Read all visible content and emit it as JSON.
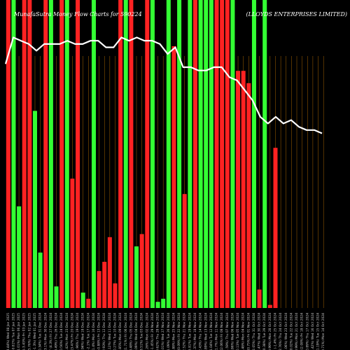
{
  "chart_data": {
    "type": "bar",
    "title": "MunafaSutra  Money Flow  Charts for 590224",
    "title_right": "(LLOYDS ENTERPRISES LIMITED)",
    "categories": [
      "Wed 08 Jan 2025",
      "Tue 07 Jan 2025",
      "Mon 06 Jan 2025",
      "Fri 03 Jan 2025",
      "Thu 02 Jan 2025",
      "Wed 01 Jan 2025",
      "Tue 31 Dec 2024",
      "Mon 30 Dec 2024",
      "Fri 27 Dec 2024",
      "Thu 26 Dec 2024",
      "Tue 24 Dec 2024",
      "Mon 23 Dec 2024",
      "Fri 20 Dec 2024",
      "Thu 19 Dec 2024",
      "Wed 18 Dec 2024",
      "Tue 17 Dec 2024",
      "Mon 16 Dec 2024",
      "Fri 13 Dec 2024",
      "Thu 12 Dec 2024",
      "Wed 11 Dec 2024",
      "Tue 10 Dec 2024",
      "Mon 09 Dec 2024",
      "Fri 06 Dec 2024",
      "Thu 05 Dec 2024",
      "Wed 04 Dec 2024",
      "Tue 03 Dec 2024",
      "Mon 02 Dec 2024",
      "Fri 29 Nov 2024",
      "Thu 28 Nov 2024",
      "Wed 27 Nov 2024",
      "Tue 26 Nov 2024",
      "Mon 25 Nov 2024",
      "Fri 22 Nov 2024",
      "Thu 21 Nov 2024",
      "Tue 19 Nov 2024",
      "Mon 18 Nov 2024",
      "Thu 14 Nov 2024",
      "Wed 13 Nov 2024",
      "Tue 12 Nov 2024",
      "Mon 11 Nov 2024",
      "Fri 08 Nov 2024",
      "Thu 07 Nov 2024",
      "Wed 06 Nov 2024",
      "Tue 05 Nov 2024",
      "Mon 04 Nov 2024",
      "Fri 01 Nov 2024",
      "Thu 31 Oct 2024",
      "Wed 30 Oct 2024",
      "Tue 29 Oct 2024",
      "Mon 28 Oct 2024",
      "Fri 25 Oct 2024",
      "Thu 24 Oct 2024",
      "Wed 23 Oct 2024",
      "Tue 22 Oct 2024",
      "Mon 21 Oct 2024",
      "Fri 18 Oct 2024",
      "Thu 17 Oct 2024",
      "Wed 16 Oct 2024",
      "Tue 15 Oct 2024",
      "Mon 14 Oct 2024"
    ],
    "tick_labels": [
      "41.42 (-3.44%)",
      "42.89 (-0.81%)",
      "43.24 (-1.01%)",
      "43.68 (-3.43%)",
      "45.23 (5.76%)",
      "42.77 (-1.3%)",
      "43.33 (-0.34%)",
      "43.48 (-3.1%)",
      "44.87 (4.3%)",
      "43.02 (0.49%)",
      "42.81 (-0.56%)",
      "43.05 (-2.42%)",
      "44.12 (3.47%)",
      "42.64 (-1.96%)",
      "43.49 (-0.94%)",
      "43.9 (-2.1%)",
      "44.84 (1.4%)",
      "44.22 (-0.88%)",
      "44.61 (2.93%)",
      "43.34 (-1.12%)",
      "43.83 (-0.27%)",
      "43.95 (-0.85%)",
      "44.33 (1.71%)",
      "43.58 (-0.48%)",
      "43.79 (-1.09%)",
      "44.27 (3.51%)",
      "42.77 (-0.26%)",
      "42.88 (-1.45%)",
      "43.51 (-0.62%)",
      "43.78 (1.01%)",
      "43.34 (-1.09%)",
      "43.82 (-0.88%)",
      "44.21 (0.09%)",
      "44.17 (-2.52%)",
      "45.31 (5.81%)",
      "42.82 (-0.37%)",
      "42.98 (-2.43%)",
      "44.05 (0.89%)",
      "43.66 (-1.04%)",
      "44.12 (-1.7%)",
      "44.88 (2.06%)",
      "43.97 (-1.59%)",
      "44.68 (-0.86%)",
      "45.07 (0.13%)",
      "45.01 (-0.48%)",
      "45.23 (0.75%)",
      "44.89 (2.05%)",
      "43.99 (-2.47%)",
      "45.1 (0.38%)",
      "44.93 (-0.99%)",
      "45.38 (-1.4%)",
      "46.02 (2.76%)",
      "44.78 (-1.06%)",
      "45.26 (0.02%)",
      "45.25 (-0.99%)",
      "45.7 (2.08%)",
      "44.77 (-0.89%)",
      "45.17 (-1.42%)",
      "45.82 (1.19%)",
      "45.28 (-0.71%)"
    ],
    "flow_values": [
      -100,
      100,
      33,
      -100,
      -100,
      64,
      18,
      -100,
      100,
      7,
      -100,
      100,
      -42,
      -100,
      5,
      -3,
      100,
      -12,
      -15,
      -23,
      -8,
      -100,
      100,
      -100,
      20,
      -24,
      -100,
      100,
      2,
      3,
      100,
      -85,
      100,
      -37,
      100,
      -100,
      100,
      100,
      100,
      -100,
      -100,
      -100,
      100,
      -77,
      -77,
      -73,
      100,
      -6,
      100,
      -1,
      -52,
      0,
      0,
      0,
      0,
      0,
      0,
      0,
      0,
      0
    ],
    "price_line": [
      45.3,
      46.1,
      46.0,
      45.9,
      45.7,
      45.9,
      45.9,
      45.9,
      46.0,
      45.9,
      45.9,
      46.0,
      46.0,
      45.8,
      45.8,
      46.1,
      46.0,
      46.1,
      46.0,
      46.0,
      45.9,
      45.6,
      45.8,
      45.2,
      45.2,
      45.1,
      45.1,
      45.2,
      45.2,
      44.9,
      44.8,
      44.5,
      44.2,
      43.7,
      43.5,
      43.7,
      43.5,
      43.6,
      43.4,
      43.3,
      43.3,
      43.2
    ],
    "colors": {
      "up": "#33ff33",
      "down": "#ff2222",
      "line": "#ffffff",
      "grid": "#aa6600",
      "background": "#000000"
    }
  }
}
